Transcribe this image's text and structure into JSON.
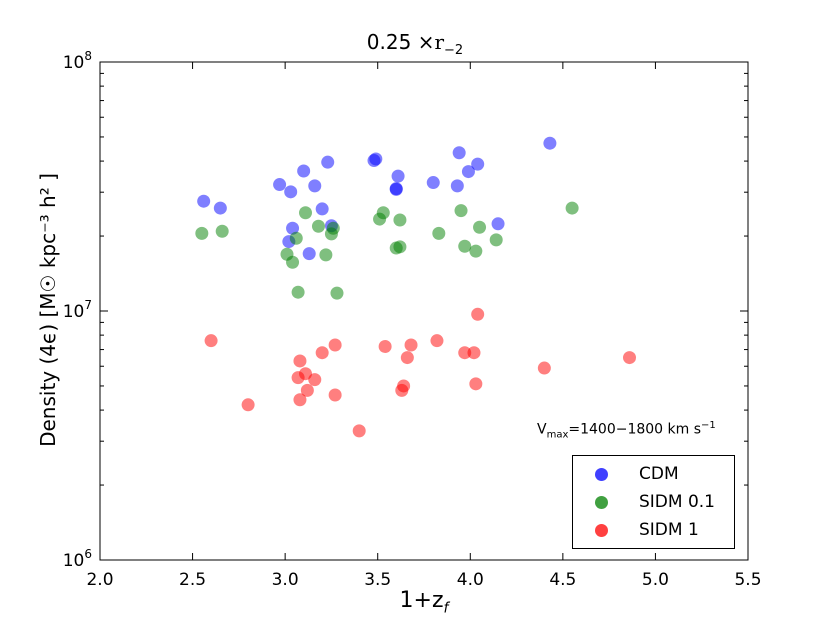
{
  "chart_data": {
    "type": "scatter",
    "title_main": "0.25",
    "title_sym": "×",
    "title_var": "r",
    "title_sub": "−2",
    "xlabel_main": "1+z",
    "xlabel_sub": "f",
    "ylabel": "Density (4ϵ) [M☉ kpc⁻³ h² ]",
    "annotation_main": "V",
    "annotation_sub": "max",
    "annotation_rest": "=1400−1800 km s",
    "annotation_sup": "−1",
    "xlim": [
      2.0,
      5.5
    ],
    "ylim": [
      1000000,
      100000000
    ],
    "yscale": "log",
    "xticks": [
      2.0,
      2.5,
      3.0,
      3.5,
      4.0,
      4.5,
      5.0,
      5.5
    ],
    "xtick_labels": [
      "2.0",
      "2.5",
      "3.0",
      "3.5",
      "4.0",
      "4.5",
      "5.0",
      "5.5"
    ],
    "ytick_base": "10",
    "ytick_exponents": [
      "6",
      "7",
      "8"
    ],
    "ytick_values": [
      1000000,
      10000000,
      100000000
    ],
    "grid": false,
    "legend_position": "lower-right",
    "series": [
      {
        "name": "CDM",
        "color": "#0000ff",
        "points": [
          [
            2.56,
            27600000
          ],
          [
            2.65,
            25900000
          ],
          [
            2.97,
            32200000
          ],
          [
            3.02,
            19000000
          ],
          [
            3.03,
            30100000
          ],
          [
            3.04,
            21500000
          ],
          [
            3.1,
            36500000
          ],
          [
            3.13,
            17000000
          ],
          [
            3.16,
            31800000
          ],
          [
            3.2,
            25700000
          ],
          [
            3.23,
            39600000
          ],
          [
            3.25,
            22000000
          ],
          [
            3.48,
            40200000
          ],
          [
            3.49,
            40800000
          ],
          [
            3.6,
            30800000
          ],
          [
            3.61,
            34800000
          ],
          [
            3.6,
            31000000
          ],
          [
            3.8,
            32800000
          ],
          [
            3.93,
            31800000
          ],
          [
            3.94,
            43200000
          ],
          [
            3.99,
            36300000
          ],
          [
            4.04,
            38900000
          ],
          [
            4.15,
            22400000
          ],
          [
            4.43,
            47200000
          ]
        ]
      },
      {
        "name": "SIDM 0.1",
        "color": "#008000",
        "points": [
          [
            2.55,
            20500000
          ],
          [
            2.66,
            20900000
          ],
          [
            3.01,
            16900000
          ],
          [
            3.04,
            15700000
          ],
          [
            3.06,
            19600000
          ],
          [
            3.07,
            11900000
          ],
          [
            3.11,
            24800000
          ],
          [
            3.18,
            21900000
          ],
          [
            3.22,
            16800000
          ],
          [
            3.25,
            20400000
          ],
          [
            3.26,
            21500000
          ],
          [
            3.28,
            11800000
          ],
          [
            3.51,
            23400000
          ],
          [
            3.53,
            24800000
          ],
          [
            3.6,
            17900000
          ],
          [
            3.62,
            18100000
          ],
          [
            3.62,
            23200000
          ],
          [
            3.83,
            20500000
          ],
          [
            3.95,
            25300000
          ],
          [
            3.97,
            18200000
          ],
          [
            4.03,
            17400000
          ],
          [
            4.05,
            21700000
          ],
          [
            4.14,
            19300000
          ],
          [
            4.55,
            25900000
          ]
        ]
      },
      {
        "name": "SIDM 1",
        "color": "#ff0000",
        "points": [
          [
            2.6,
            7600000
          ],
          [
            2.8,
            4200000
          ],
          [
            3.07,
            5400000
          ],
          [
            3.08,
            6300000
          ],
          [
            3.08,
            4400000
          ],
          [
            3.11,
            5600000
          ],
          [
            3.12,
            4800000
          ],
          [
            3.16,
            5300000
          ],
          [
            3.2,
            6800000
          ],
          [
            3.27,
            7300000
          ],
          [
            3.27,
            4600000
          ],
          [
            3.4,
            3300000
          ],
          [
            3.54,
            7200000
          ],
          [
            3.63,
            4800000
          ],
          [
            3.64,
            5000000
          ],
          [
            3.66,
            6500000
          ],
          [
            3.68,
            7300000
          ],
          [
            3.82,
            7600000
          ],
          [
            3.97,
            6800000
          ],
          [
            4.02,
            6800000
          ],
          [
            4.03,
            5100000
          ],
          [
            4.04,
            9700000
          ],
          [
            4.4,
            5900000
          ],
          [
            4.86,
            6500000
          ]
        ]
      }
    ]
  }
}
